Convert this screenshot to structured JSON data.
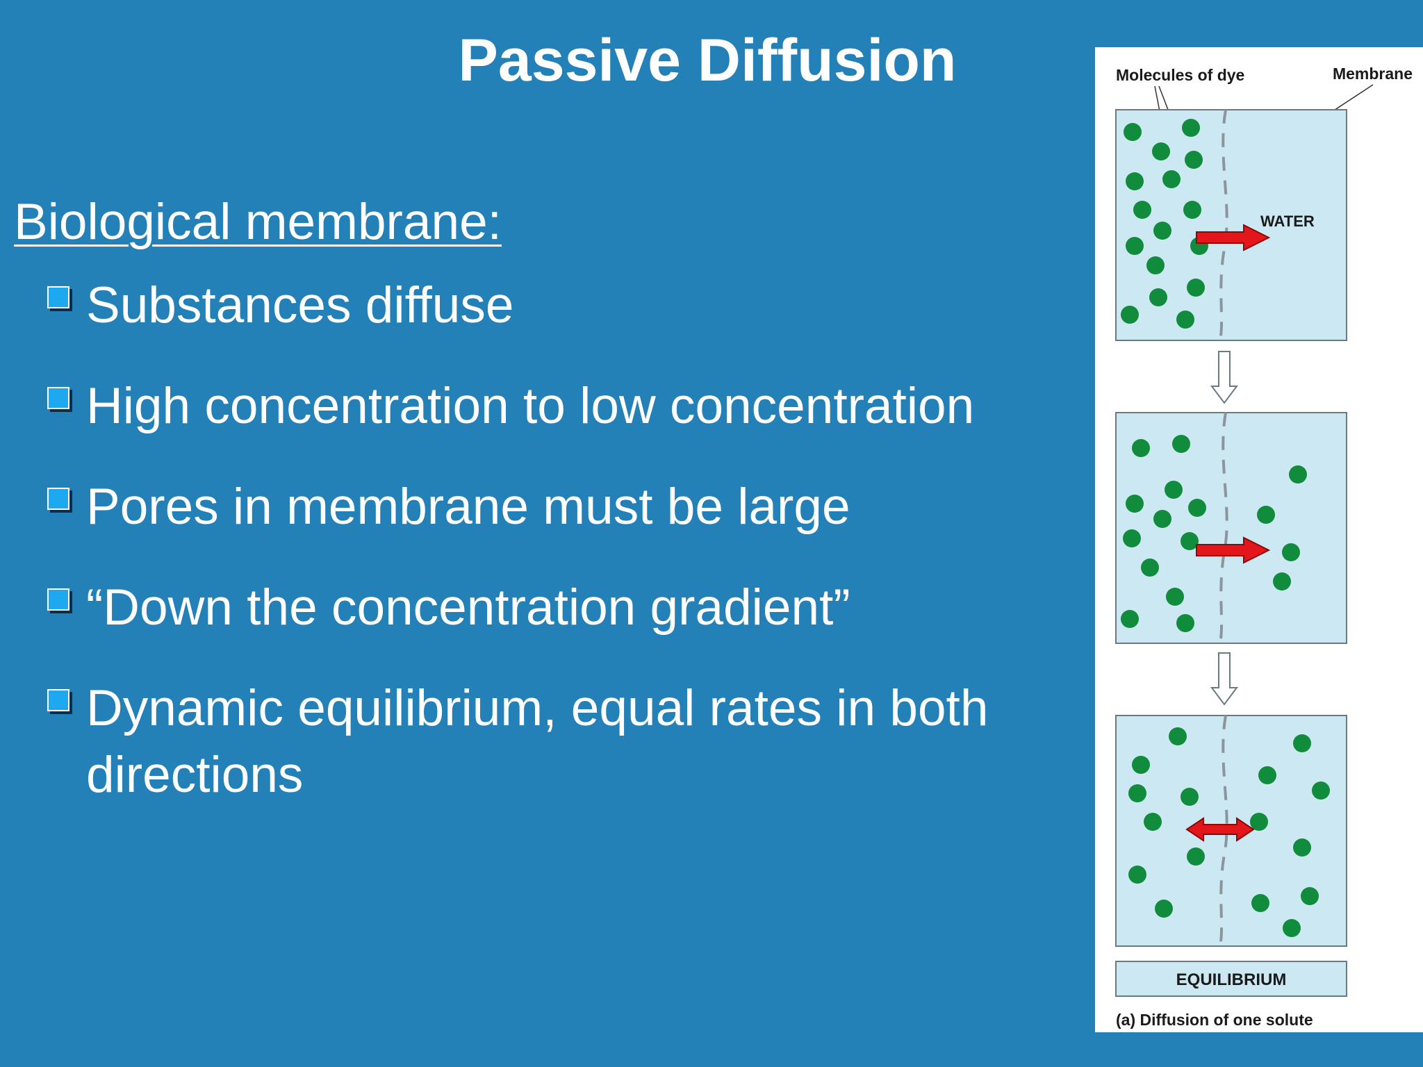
{
  "slide": {
    "title": "Passive Diffusion",
    "heading": "Biological membrane:",
    "bullets": [
      "Substances diffuse",
      "High concentration to low concentration",
      "Pores in membrane must be large",
      "“Down the concentration gradient”",
      "Dynamic equilibrium, equal rates in both directions"
    ]
  },
  "figure": {
    "label_molecules": "Molecules of dye",
    "label_membrane": "Membrane",
    "label_water": "WATER",
    "label_equilibrium": "EQUILIBRIUM",
    "caption": "(a) Diffusion of one solute"
  },
  "colors": {
    "background": "#2381b8",
    "bullet_box": "#1ea8ef",
    "dye": "#118b3c",
    "arrow": "#e3161b",
    "chamber": "#cce8f2"
  }
}
